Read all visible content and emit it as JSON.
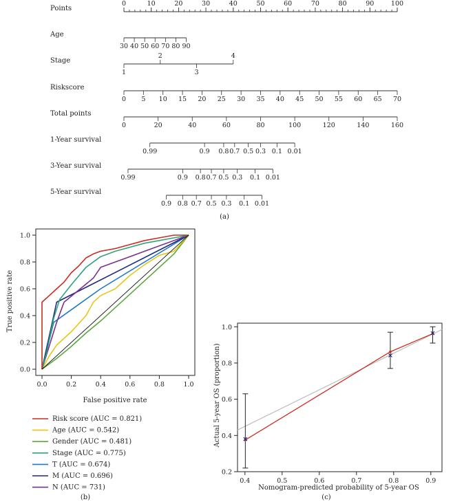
{
  "nomogram": {
    "panel_label": "(a)",
    "rows": [
      {
        "name": "points",
        "label": "Points",
        "ticks": [
          {
            "t": "0",
            "v": 0
          },
          {
            "t": "10",
            "v": 10
          },
          {
            "t": "20",
            "v": 20
          },
          {
            "t": "30",
            "v": 30
          },
          {
            "t": "40",
            "v": 40
          },
          {
            "t": "50",
            "v": 50
          },
          {
            "t": "60",
            "v": 60
          },
          {
            "t": "70",
            "v": 70
          },
          {
            "t": "80",
            "v": 80
          },
          {
            "t": "90",
            "v": 90
          },
          {
            "t": "100",
            "v": 100
          }
        ],
        "labels_above": true
      },
      {
        "name": "age",
        "label": "Age",
        "ticks": [
          {
            "t": "30",
            "v": 0
          },
          {
            "t": "40",
            "v": 3.8
          },
          {
            "t": "50",
            "v": 7.6
          },
          {
            "t": "60",
            "v": 11.4
          },
          {
            "t": "70",
            "v": 15.2
          },
          {
            "t": "80",
            "v": 19
          },
          {
            "t": "90",
            "v": 22.8
          }
        ],
        "labels_above": false
      },
      {
        "name": "stage",
        "label": "Stage",
        "ticks": [
          {
            "t": "1",
            "v": 0,
            "pos": "below"
          },
          {
            "t": "2",
            "v": 13.3,
            "pos": "above"
          },
          {
            "t": "3",
            "v": 26.6,
            "pos": "below"
          },
          {
            "t": "4",
            "v": 40,
            "pos": "above"
          }
        ],
        "labels_above": false
      },
      {
        "name": "riskscore",
        "label": "Riskscore",
        "ticks": [
          {
            "t": "0",
            "v": 0
          },
          {
            "t": "5",
            "v": 7.14
          },
          {
            "t": "10",
            "v": 14.29
          },
          {
            "t": "15",
            "v": 21.43
          },
          {
            "t": "20",
            "v": 28.57
          },
          {
            "t": "25",
            "v": 35.71
          },
          {
            "t": "30",
            "v": 42.86
          },
          {
            "t": "35",
            "v": 50
          },
          {
            "t": "40",
            "v": 57.14
          },
          {
            "t": "45",
            "v": 64.29
          },
          {
            "t": "50",
            "v": 71.43
          },
          {
            "t": "55",
            "v": 78.57
          },
          {
            "t": "60",
            "v": 85.71
          },
          {
            "t": "65",
            "v": 92.86
          },
          {
            "t": "70",
            "v": 100
          }
        ],
        "labels_above": false
      },
      {
        "name": "total-points",
        "label": "Total points",
        "ticks": [
          {
            "t": "0",
            "v": 0
          },
          {
            "t": "20",
            "v": 12.5
          },
          {
            "t": "40",
            "v": 25
          },
          {
            "t": "60",
            "v": 37.5
          },
          {
            "t": "80",
            "v": 50
          },
          {
            "t": "100",
            "v": 62.5
          },
          {
            "t": "120",
            "v": 75
          },
          {
            "t": "140",
            "v": 87.5
          },
          {
            "t": "160",
            "v": 100
          }
        ],
        "labels_above": false
      },
      {
        "name": "one-year-survival",
        "label": "1-Year survival",
        "ticks": [
          {
            "t": "0.99",
            "v": 9.5
          },
          {
            "t": "0.9",
            "v": 29.5
          },
          {
            "t": "0.8",
            "v": 36.5
          },
          {
            "t": "0.7",
            "v": 40.5
          },
          {
            "t": "0.5",
            "v": 45.5
          },
          {
            "t": "0.3",
            "v": 50
          },
          {
            "t": "0.1",
            "v": 56
          },
          {
            "t": "0.01",
            "v": 62.5
          }
        ],
        "labels_above": false
      },
      {
        "name": "three-year-survival",
        "label": "3-Year survival",
        "ticks": [
          {
            "t": "0.99",
            "v": 1.5
          },
          {
            "t": "0.9",
            "v": 21.5
          },
          {
            "t": "0.8",
            "v": 28
          },
          {
            "t": "0.7",
            "v": 32
          },
          {
            "t": "0.5",
            "v": 36.5
          },
          {
            "t": "0.3",
            "v": 41.5
          },
          {
            "t": "0.1",
            "v": 48
          },
          {
            "t": "0.01",
            "v": 54.5
          }
        ],
        "labels_above": false
      },
      {
        "name": "five-year-survival",
        "label": "5-Year survival",
        "ticks": [
          {
            "t": "0.9",
            "v": 15.5
          },
          {
            "t": "0.8",
            "v": 21.5
          },
          {
            "t": "0.7",
            "v": 26.5
          },
          {
            "t": "0.5",
            "v": 32
          },
          {
            "t": "0.3",
            "v": 37.5
          },
          {
            "t": "0.1",
            "v": 44
          },
          {
            "t": "0.01",
            "v": 50.5
          }
        ],
        "labels_above": false
      }
    ]
  },
  "chart_data": [
    {
      "type": "line",
      "panel_label": "(b)",
      "title": "",
      "xlabel": "False positive rate",
      "ylabel": "True positive rate",
      "xlim": [
        0,
        1
      ],
      "ylim": [
        0,
        1
      ],
      "xticks": [
        "0.0",
        "0.2",
        "0.4",
        "0.6",
        "0.8",
        "1.0"
      ],
      "yticks": [
        "0.0",
        "0.2",
        "0.4",
        "0.6",
        "0.8",
        "1.0"
      ],
      "series": [
        {
          "name": "Risk score (AUC = 0.821)",
          "color": "#cc2a1e",
          "points": [
            [
              0,
              0
            ],
            [
              0,
              0.5
            ],
            [
              0.02,
              0.52
            ],
            [
              0.05,
              0.55
            ],
            [
              0.1,
              0.6
            ],
            [
              0.15,
              0.65
            ],
            [
              0.2,
              0.72
            ],
            [
              0.25,
              0.77
            ],
            [
              0.3,
              0.83
            ],
            [
              0.35,
              0.86
            ],
            [
              0.4,
              0.88
            ],
            [
              0.5,
              0.9
            ],
            [
              0.6,
              0.93
            ],
            [
              0.7,
              0.96
            ],
            [
              0.8,
              0.98
            ],
            [
              0.9,
              1.0
            ],
            [
              1,
              1
            ]
          ]
        },
        {
          "name": "Age (AUC = 0.542)",
          "color": "#e6c619",
          "points": [
            [
              0,
              0
            ],
            [
              0.05,
              0.1
            ],
            [
              0.1,
              0.18
            ],
            [
              0.2,
              0.28
            ],
            [
              0.3,
              0.4
            ],
            [
              0.35,
              0.5
            ],
            [
              0.4,
              0.55
            ],
            [
              0.5,
              0.6
            ],
            [
              0.6,
              0.7
            ],
            [
              0.7,
              0.78
            ],
            [
              0.8,
              0.85
            ],
            [
              0.9,
              0.88
            ],
            [
              1,
              1
            ]
          ]
        },
        {
          "name": "Gender (AUC = 0.481)",
          "color": "#5aa83a",
          "points": [
            [
              0,
              0
            ],
            [
              0.1,
              0.08
            ],
            [
              0.2,
              0.17
            ],
            [
              0.3,
              0.27
            ],
            [
              0.4,
              0.36
            ],
            [
              0.5,
              0.46
            ],
            [
              0.6,
              0.56
            ],
            [
              0.7,
              0.66
            ],
            [
              0.8,
              0.76
            ],
            [
              0.9,
              0.86
            ],
            [
              1,
              1
            ]
          ]
        },
        {
          "name": "Stage (AUC = 0.775)",
          "color": "#2ea27a",
          "points": [
            [
              0,
              0
            ],
            [
              0.03,
              0.12
            ],
            [
              0.08,
              0.38
            ],
            [
              0.12,
              0.52
            ],
            [
              0.2,
              0.63
            ],
            [
              0.3,
              0.76
            ],
            [
              0.4,
              0.84
            ],
            [
              0.5,
              0.88
            ],
            [
              0.6,
              0.91
            ],
            [
              0.7,
              0.94
            ],
            [
              0.8,
              0.96
            ],
            [
              0.9,
              0.98
            ],
            [
              1,
              1
            ]
          ]
        },
        {
          "name": "T (AUC = 0.674)",
          "color": "#1f78c8",
          "points": [
            [
              0,
              0
            ],
            [
              0.08,
              0.35
            ],
            [
              0.4,
              0.6
            ],
            [
              0.7,
              0.8
            ],
            [
              1,
              1
            ]
          ]
        },
        {
          "name": "M (AUC = 0.696)",
          "color": "#1c2a82",
          "points": [
            [
              0,
              0
            ],
            [
              0.1,
              0.5
            ],
            [
              0.55,
              0.75
            ],
            [
              1,
              1
            ]
          ]
        },
        {
          "name": "N (AUC = 731)",
          "color": "#7a2f8e",
          "points": [
            [
              0,
              0
            ],
            [
              0.1,
              0.35
            ],
            [
              0.15,
              0.5
            ],
            [
              0.35,
              0.68
            ],
            [
              0.4,
              0.76
            ],
            [
              0.55,
              0.82
            ],
            [
              0.7,
              0.88
            ],
            [
              1,
              1
            ]
          ]
        }
      ]
    },
    {
      "type": "scatter",
      "panel_label": "(c)",
      "title": "",
      "xlabel": "Nomogram-predicted probability of 5-year OS",
      "ylabel": "Actual 5-year OS (proportion)",
      "xlim": [
        0.38,
        0.93
      ],
      "ylim": [
        0.2,
        1.02
      ],
      "xticks": [
        "0.4",
        "0.5",
        "0.6",
        "0.7",
        "0.8",
        "0.9"
      ],
      "yticks": [
        "0.2",
        "0.4",
        "0.6",
        "0.8",
        "1.0"
      ],
      "ideal_line": {
        "color": "#bdbdbd",
        "from": [
          0.38,
          0.43
        ],
        "to": [
          0.93,
          0.985
        ]
      },
      "series": [
        {
          "name": "calibration",
          "color": "#cc2a1e",
          "points": [
            [
              0.401,
              0.375
            ],
            [
              0.791,
              0.862
            ],
            [
              0.905,
              0.962
            ]
          ]
        },
        {
          "name": "observed",
          "color": "#1c2a82",
          "points": [
            [
              0.401,
              0.38
            ],
            [
              0.791,
              0.842
            ],
            [
              0.905,
              0.965
            ]
          ]
        }
      ],
      "error_bars": [
        {
          "x": 0.401,
          "low": 0.22,
          "high": 0.63
        },
        {
          "x": 0.791,
          "low": 0.77,
          "high": 0.97
        },
        {
          "x": 0.905,
          "low": 0.91,
          "high": 1.0
        }
      ]
    }
  ]
}
